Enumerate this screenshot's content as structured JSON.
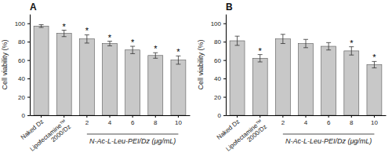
{
  "chart_data": [
    {
      "type": "bar",
      "title": "A",
      "categories": [
        "Naked Dz",
        "Lipofectamine™\n2000/Dz",
        "2",
        "4",
        "6",
        "8",
        "10"
      ],
      "values": [
        97,
        89,
        83,
        78,
        71,
        65,
        60
      ],
      "errors": [
        1.5,
        3.5,
        4.5,
        2.5,
        4.0,
        3.0,
        4.5
      ],
      "annotations": [
        null,
        "*",
        "*",
        "*",
        "*",
        "*",
        "*"
      ],
      "color": "#c8c8c8",
      "xlabel": "N-Ac-L-Leu-PEI/Dz (μg/mL)",
      "ylabel": "Cell viability (%)",
      "ylim": [
        0,
        110
      ],
      "yticks": [
        0,
        20,
        40,
        60,
        80,
        100
      ],
      "grid": false
    },
    {
      "type": "bar",
      "title": "B",
      "categories": [
        "Naked Dz",
        "Lipofectamine™\n2000/Dz",
        "2",
        "4",
        "6",
        "8",
        "10"
      ],
      "values": [
        81,
        62,
        83,
        78,
        75,
        70,
        55
      ],
      "errors": [
        5.0,
        4.0,
        5.0,
        4.5,
        4.0,
        4.5,
        3.5
      ],
      "annotations": [
        null,
        "*",
        null,
        null,
        null,
        "*",
        "*"
      ],
      "color": "#c8c8c8",
      "xlabel": "N-Ac-L-Leu-PEI/Dz (μg/mL)",
      "ylabel": "Cell viability (%)",
      "ylim": [
        0,
        110
      ],
      "yticks": [
        0,
        20,
        40,
        60,
        80,
        100
      ],
      "grid": false
    }
  ]
}
